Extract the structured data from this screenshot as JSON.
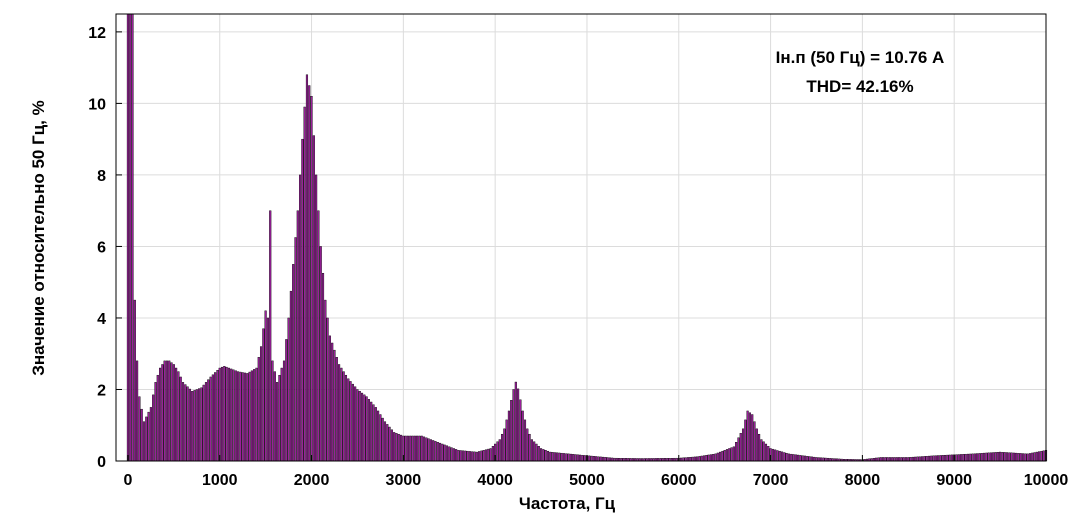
{
  "chart_data": {
    "type": "bar",
    "xlabel": "Частота, Гц",
    "ylabel": "Значение относительно 50 Гц, %",
    "xlim": [
      -130,
      10000
    ],
    "ylim": [
      0,
      12.5
    ],
    "xticks": [
      0,
      1000,
      2000,
      3000,
      4000,
      5000,
      6000,
      7000,
      8000,
      9000,
      10000
    ],
    "yticks": [
      0,
      2,
      4,
      6,
      8,
      10,
      12
    ],
    "grid": true,
    "bar_color": "#9b1f9b",
    "bar_edge_color": "#000000",
    "annotations": [
      "Iн.п (50 Гц) = 10.76 А",
      "THD= 42.16%"
    ],
    "spectrum_points": [
      [
        0,
        12.5
      ],
      [
        25,
        12.5
      ],
      [
        50,
        12.5
      ],
      [
        75,
        4.5
      ],
      [
        100,
        2.8
      ],
      [
        125,
        1.8
      ],
      [
        175,
        1.1
      ],
      [
        250,
        1.5
      ],
      [
        300,
        2.2
      ],
      [
        350,
        2.6
      ],
      [
        400,
        2.8
      ],
      [
        450,
        2.8
      ],
      [
        500,
        2.7
      ],
      [
        550,
        2.5
      ],
      [
        600,
        2.2
      ],
      [
        700,
        1.95
      ],
      [
        800,
        2.05
      ],
      [
        900,
        2.35
      ],
      [
        1000,
        2.6
      ],
      [
        1050,
        2.65
      ],
      [
        1100,
        2.6
      ],
      [
        1200,
        2.5
      ],
      [
        1300,
        2.45
      ],
      [
        1400,
        2.6
      ],
      [
        1450,
        3.2
      ],
      [
        1500,
        4.2
      ],
      [
        1525,
        4.0
      ],
      [
        1550,
        7.0
      ],
      [
        1575,
        2.8
      ],
      [
        1625,
        2.2
      ],
      [
        1700,
        2.8
      ],
      [
        1750,
        4.0
      ],
      [
        1800,
        5.5
      ],
      [
        1850,
        7.0
      ],
      [
        1900,
        9.0
      ],
      [
        1950,
        10.8
      ],
      [
        2000,
        10.2
      ],
      [
        2050,
        8.0
      ],
      [
        2100,
        6.0
      ],
      [
        2150,
        4.5
      ],
      [
        2200,
        3.5
      ],
      [
        2300,
        2.7
      ],
      [
        2400,
        2.3
      ],
      [
        2500,
        2.0
      ],
      [
        2600,
        1.8
      ],
      [
        2700,
        1.5
      ],
      [
        2800,
        1.1
      ],
      [
        2900,
        0.8
      ],
      [
        3000,
        0.7
      ],
      [
        3200,
        0.7
      ],
      [
        3400,
        0.5
      ],
      [
        3600,
        0.3
      ],
      [
        3800,
        0.25
      ],
      [
        3950,
        0.35
      ],
      [
        4050,
        0.6
      ],
      [
        4100,
        0.9
      ],
      [
        4150,
        1.4
      ],
      [
        4200,
        2.0
      ],
      [
        4230,
        2.25
      ],
      [
        4260,
        1.9
      ],
      [
        4300,
        1.4
      ],
      [
        4350,
        0.9
      ],
      [
        4400,
        0.6
      ],
      [
        4500,
        0.35
      ],
      [
        4600,
        0.25
      ],
      [
        4800,
        0.2
      ],
      [
        5000,
        0.15
      ],
      [
        5300,
        0.08
      ],
      [
        5600,
        0.07
      ],
      [
        6000,
        0.08
      ],
      [
        6200,
        0.12
      ],
      [
        6400,
        0.2
      ],
      [
        6600,
        0.4
      ],
      [
        6700,
        0.9
      ],
      [
        6750,
        1.4
      ],
      [
        6800,
        1.3
      ],
      [
        6850,
        0.9
      ],
      [
        6900,
        0.6
      ],
      [
        7000,
        0.35
      ],
      [
        7200,
        0.2
      ],
      [
        7500,
        0.1
      ],
      [
        7800,
        0.05
      ],
      [
        8000,
        0.04
      ],
      [
        8200,
        0.1
      ],
      [
        8500,
        0.1
      ],
      [
        8800,
        0.15
      ],
      [
        9200,
        0.2
      ],
      [
        9500,
        0.25
      ],
      [
        9800,
        0.2
      ],
      [
        10000,
        0.3
      ]
    ]
  }
}
